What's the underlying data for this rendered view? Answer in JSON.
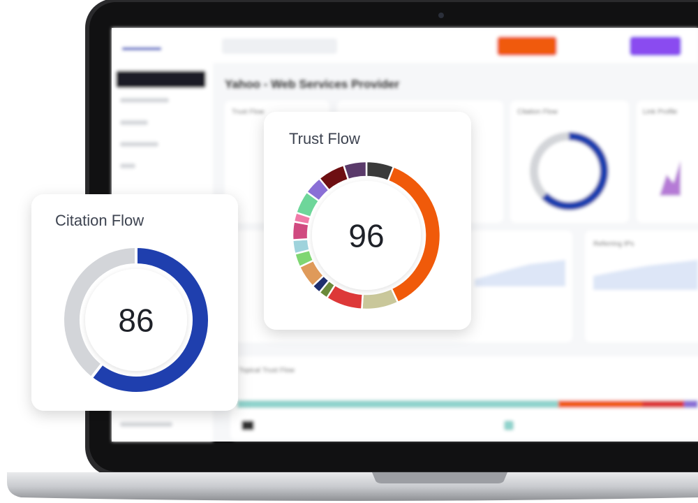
{
  "laptop_screen": {
    "page_title": "Yahoo - Web Services Provider",
    "cards": [
      "Trust Flow",
      "Citation Flow",
      "Link Profile",
      "Referring IPs"
    ],
    "section": "Topical Trust Flow"
  },
  "citation_card": {
    "title": "Citation Flow",
    "score": 86,
    "segments": [
      {
        "color": "#1f3fae",
        "value": 60.5
      },
      {
        "color": "#d3d5d9",
        "value": 39.5
      }
    ]
  },
  "trust_card": {
    "title": "Trust Flow",
    "score": 96,
    "segments": [
      {
        "color": "#3a3a3a",
        "value": 6
      },
      {
        "color": "#f05a0a",
        "value": 37
      },
      {
        "color": "#c9c79a",
        "value": 8
      },
      {
        "color": "#dd3838",
        "value": 8
      },
      {
        "color": "#6b8a3a",
        "value": 2
      },
      {
        "color": "#1f2f6e",
        "value": 2
      },
      {
        "color": "#df9a5a",
        "value": 5
      },
      {
        "color": "#7fd672",
        "value": 3
      },
      {
        "color": "#9fd3dc",
        "value": 3
      },
      {
        "color": "#d04a80",
        "value": 4
      },
      {
        "color": "#f07aa8",
        "value": 2
      },
      {
        "color": "#6ed69a",
        "value": 5
      },
      {
        "color": "#8a6fd6",
        "value": 4
      },
      {
        "color": "#6e0f12",
        "value": 6
      },
      {
        "color": "#5a3a6a",
        "value": 5
      }
    ]
  }
}
